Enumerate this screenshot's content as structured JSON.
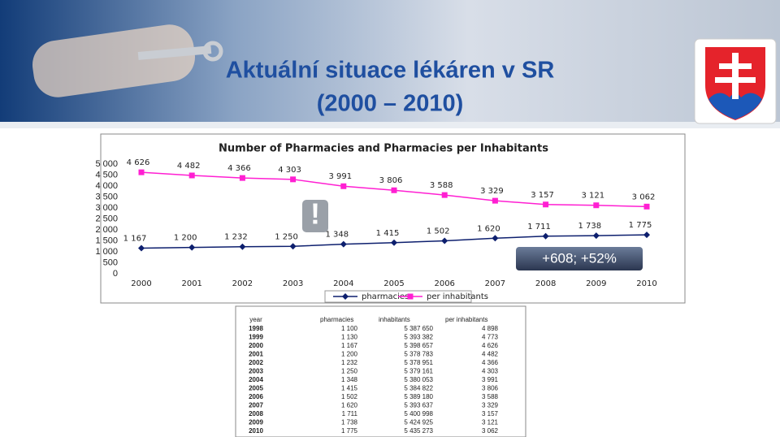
{
  "title": "Aktuální situace lékáren v SR",
  "subtitle": "(2000 – 2010)",
  "chart_data": {
    "type": "line",
    "title": "Number of Pharmacies and Pharmacies per Inhabitants",
    "categories": [
      "2000",
      "2001",
      "2002",
      "2003",
      "2004",
      "2005",
      "2006",
      "2007",
      "2008",
      "2009",
      "2010"
    ],
    "series": [
      {
        "name": "pharmacies",
        "color": "#0d1f6e",
        "marker": "diamond",
        "values": [
          1167,
          1200,
          1232,
          1250,
          1348,
          1415,
          1502,
          1620,
          1711,
          1738,
          1775
        ],
        "value_labels": [
          "1 167",
          "1 200",
          "1 232",
          "1 250",
          "1 348",
          "1 415",
          "1 502",
          "1 620",
          "1 711",
          "1 738",
          "1 775"
        ]
      },
      {
        "name": "per inhabitants",
        "color": "#ff1fd2",
        "marker": "square",
        "values": [
          4626,
          4482,
          4366,
          4303,
          3991,
          3806,
          3588,
          3329,
          3157,
          3121,
          3062
        ],
        "value_labels": [
          "4 626",
          "4 482",
          "4 366",
          "4 303",
          "3 991",
          "3 806",
          "3 588",
          "3 329",
          "3 157",
          "3 121",
          "3 062"
        ]
      }
    ],
    "ylim": [
      0,
      5000
    ],
    "yticks": [
      0,
      500,
      {
        "value": 1000,
        "label": "1 000"
      },
      {
        "value": 1500,
        "label": "1 500"
      },
      {
        "value": 2000,
        "label": "2 000"
      },
      {
        "value": 2500,
        "label": "2 500"
      },
      {
        "value": 3000,
        "label": "3 000"
      },
      {
        "value": 3500,
        "label": "3 500"
      },
      {
        "value": 4000,
        "label": "4 000"
      },
      {
        "value": 4500,
        "label": "4 500"
      },
      {
        "value": 5000,
        "label": "5 000"
      }
    ],
    "grid": false,
    "legend": "bottom",
    "annotations": [
      "+608; +52%",
      "!"
    ]
  },
  "table": {
    "header": [
      "year",
      "pharmacies",
      "inhabitants",
      "per inhabitants"
    ],
    "rows": [
      [
        "1998",
        "1 100",
        "5 387 650",
        "4 898"
      ],
      [
        "1999",
        "1 130",
        "5 393 382",
        "4 773"
      ],
      [
        "2000",
        "1 167",
        "5 398 657",
        "4 626"
      ],
      [
        "2001",
        "1 200",
        "5 378 783",
        "4 482"
      ],
      [
        "2002",
        "1 232",
        "5 378 951",
        "4 366"
      ],
      [
        "2003",
        "1 250",
        "5 379 161",
        "4 303"
      ],
      [
        "2004",
        "1 348",
        "5 380 053",
        "3 991"
      ],
      [
        "2005",
        "1 415",
        "5 384 822",
        "3 806"
      ],
      [
        "2006",
        "1 502",
        "5 389 180",
        "3 588"
      ],
      [
        "2007",
        "1 620",
        "5 393 637",
        "3 329"
      ],
      [
        "2008",
        "1 711",
        "5 400 998",
        "3 157"
      ],
      [
        "2009",
        "1 738",
        "5 424 925",
        "3 121"
      ],
      [
        "2010",
        "1 775",
        "5 435 273",
        "3 062"
      ]
    ]
  }
}
